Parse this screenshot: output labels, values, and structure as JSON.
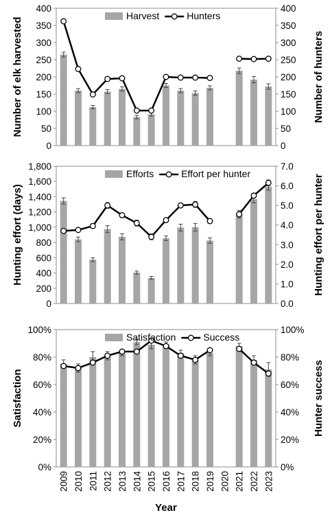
{
  "chart_data": [
    {
      "type": "bar",
      "categories": [
        "2009",
        "2010",
        "2011",
        "2012",
        "2013",
        "2014",
        "2015",
        "2016",
        "2017",
        "2018",
        "2019",
        "2020",
        "2021",
        "2022",
        "2023"
      ],
      "ylabel": "Number of elk harvested",
      "y2label": "Number of hunters",
      "ylim": [
        0,
        400
      ],
      "y2lim": [
        0,
        400
      ],
      "yticks": [
        "0",
        "50",
        "100",
        "150",
        "200",
        "250",
        "300",
        "350",
        "400"
      ],
      "y2ticks": [
        "0",
        "50",
        "100",
        "150",
        "200",
        "250",
        "300",
        "350",
        "400"
      ],
      "legend_position": "top",
      "series": [
        {
          "name": "Harvest",
          "type": "bar",
          "axis": "left",
          "color": "#a6a6a6",
          "values": [
            265,
            160,
            112,
            157,
            165,
            83,
            91,
            175,
            160,
            153,
            168,
            null,
            218,
            192,
            172
          ],
          "errors": [
            7,
            6,
            5,
            6,
            6,
            5,
            5,
            6,
            6,
            6,
            6,
            null,
            8,
            9,
            8
          ]
        },
        {
          "name": "Hunters",
          "type": "line",
          "axis": "right",
          "color": "#000000",
          "values": [
            362,
            223,
            149,
            194,
            196,
            102,
            102,
            200,
            198,
            198,
            197,
            null,
            253,
            252,
            253
          ]
        }
      ]
    },
    {
      "type": "bar",
      "categories": [
        "2009",
        "2010",
        "2011",
        "2012",
        "2013",
        "2014",
        "2015",
        "2016",
        "2017",
        "2018",
        "2019",
        "2020",
        "2021",
        "2022",
        "2023"
      ],
      "ylabel": "Hunting effort (days)",
      "y2label": "Hunting effort per hunter",
      "ylim": [
        0,
        1800
      ],
      "y2lim": [
        0,
        7
      ],
      "yticks": [
        "0",
        "200",
        "400",
        "600",
        "800",
        "1,000",
        "1,200",
        "1,400",
        "1,600",
        "1,800"
      ],
      "y2ticks": [
        "0.0",
        "1.0",
        "2.0",
        "3.0",
        "4.0",
        "5.0",
        "6.0",
        "7.0"
      ],
      "legend_position": "top",
      "series": [
        {
          "name": "Efforts",
          "type": "bar",
          "axis": "left",
          "color": "#a6a6a6",
          "values": [
            1345,
            840,
            575,
            975,
            875,
            405,
            335,
            855,
            995,
            1000,
            825,
            null,
            1170,
            1365,
            1530
          ],
          "errors": [
            40,
            30,
            25,
            45,
            40,
            20,
            20,
            30,
            45,
            50,
            35,
            null,
            50,
            45,
            45
          ]
        },
        {
          "name": "Effort per hunter",
          "type": "line",
          "axis": "right",
          "color": "#000000",
          "values": [
            3.7,
            3.75,
            3.95,
            5.0,
            4.5,
            4.1,
            3.4,
            4.25,
            5.0,
            5.05,
            4.2,
            null,
            4.55,
            5.5,
            6.15
          ],
          "errors": [
            0.08,
            0.08,
            0.12,
            0.15,
            0.12,
            0.15,
            0.15,
            0.1,
            0.12,
            0.15,
            0.12,
            null,
            0.12,
            0.12,
            0.15
          ]
        }
      ]
    },
    {
      "type": "bar",
      "categories": [
        "2009",
        "2010",
        "2011",
        "2012",
        "2013",
        "2014",
        "2015",
        "2016",
        "2017",
        "2018",
        "2019",
        "2020",
        "2021",
        "2022",
        "2023"
      ],
      "xlabel": "Year",
      "ylabel": "Satisfaction",
      "y2label": "Hunter success",
      "ylim": [
        0,
        100
      ],
      "y2lim": [
        0,
        100
      ],
      "yticks": [
        "0%",
        "20%",
        "40%",
        "60%",
        "80%",
        "100%"
      ],
      "y2ticks": [
        "0%",
        "20%",
        "40%",
        "60%",
        "80%",
        "100%"
      ],
      "legend_position": "top",
      "series": [
        {
          "name": "Satisfaction",
          "type": "bar",
          "axis": "left",
          "color": "#a6a6a6",
          "values": [
            75,
            72,
            80,
            81,
            83,
            91,
            89,
            89,
            83,
            78,
            83,
            null,
            88,
            78,
            71
          ],
          "errors": [
            3,
            3,
            4,
            3,
            2,
            2,
            3,
            2,
            2,
            3,
            2,
            null,
            2,
            3,
            5
          ]
        },
        {
          "name": "Success",
          "type": "line",
          "axis": "right",
          "color": "#000000",
          "values": [
            73.5,
            72,
            76,
            81,
            84,
            84,
            92,
            88,
            81,
            78,
            85,
            null,
            86,
            76,
            68
          ]
        }
      ]
    }
  ]
}
